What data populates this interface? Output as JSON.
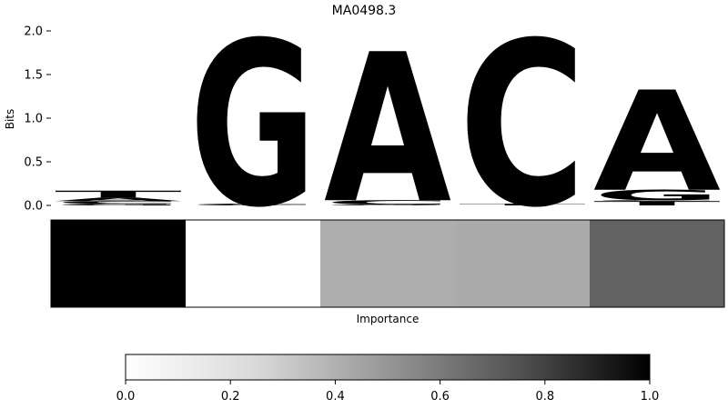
{
  "chart_data": [
    {
      "type": "sequence-logo",
      "title": "MA0498.3",
      "ylabel": "Bits",
      "ylim": [
        0,
        2.0
      ],
      "yticks": [
        0.0,
        0.5,
        1.0,
        1.5,
        2.0
      ],
      "ytick_labels": [
        "0.0",
        "0.5",
        "1.0",
        "1.5",
        "2.0"
      ],
      "grid": false,
      "colors": {
        "A": "#4ca64c",
        "C": "#4c4cff",
        "G": "#ffbf4c",
        "T": "#ff4c4c"
      },
      "positions": [
        {
          "position": 1,
          "letters": [
            {
              "base": "G",
              "bits": 0.02
            },
            {
              "base": "C",
              "bits": 0.03
            },
            {
              "base": "A",
              "bits": 0.04
            },
            {
              "base": "T",
              "bits": 0.08
            },
            {
              "base": "T",
              "bits": 0.0
            },
            {
              "base": "A",
              "bits": 0.0
            }
          ]
        },
        {
          "position": 2,
          "letters": [
            {
              "base": "A",
              "bits": 0.0
            },
            {
              "base": "C",
              "bits": 0.02
            },
            {
              "base": "T",
              "bits": 0.0
            },
            {
              "base": "G",
              "bits": 1.89
            }
          ]
        },
        {
          "position": 3,
          "letters": [
            {
              "base": "G",
              "bits": 0.01
            },
            {
              "base": "T",
              "bits": 0.0
            },
            {
              "base": "C",
              "bits": 0.05
            },
            {
              "base": "A",
              "bits": 1.71
            }
          ]
        },
        {
          "position": 4,
          "letters": [
            {
              "base": "T",
              "bits": 0.02
            },
            {
              "base": "A",
              "bits": 0.0
            },
            {
              "base": "G",
              "bits": 0.0
            },
            {
              "base": "C",
              "bits": 1.89
            }
          ]
        },
        {
          "position": 5,
          "letters": [
            {
              "base": "T",
              "bits": 0.05
            },
            {
              "base": "C",
              "bits": 0.01
            },
            {
              "base": "G",
              "bits": 0.12
            },
            {
              "base": "A",
              "bits": 1.15
            }
          ]
        }
      ]
    },
    {
      "type": "heatmap",
      "xlabel": "Importance",
      "values": [
        1.0,
        0.0,
        0.41,
        0.42,
        0.69
      ],
      "colormap": "Greys",
      "colorbar": {
        "range": [
          0.0,
          1.0
        ],
        "ticks": [
          0.0,
          0.2,
          0.4,
          0.6,
          0.8,
          1.0
        ],
        "tick_labels": [
          "0.0",
          "0.2",
          "0.4",
          "0.6",
          "0.8",
          "1.0"
        ]
      }
    }
  ]
}
